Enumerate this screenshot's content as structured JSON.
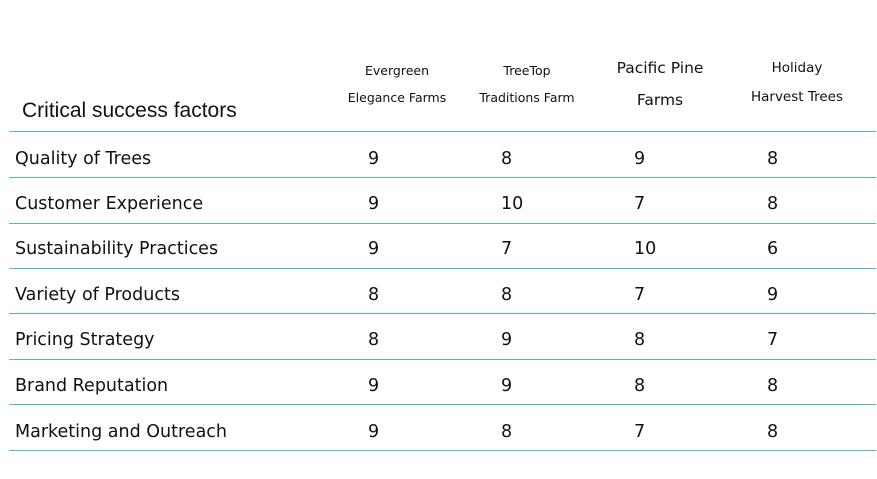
{
  "table": {
    "title": "Critical success factors",
    "columns": [
      {
        "line1": "Evergreen",
        "line2": "Elegance Farms"
      },
      {
        "line1": "TreeTop",
        "line2": "Traditions Farm"
      },
      {
        "line1": "Pacific Pine",
        "line2": "Farms"
      },
      {
        "line1": "Holiday",
        "line2": "Harvest Trees"
      }
    ],
    "rows": [
      {
        "label": "Quality of Trees",
        "values": [
          "9",
          "8",
          "9",
          "8"
        ]
      },
      {
        "label": "Customer Experience",
        "values": [
          "9",
          "10",
          "7",
          "8"
        ]
      },
      {
        "label": "Sustainability Practices",
        "values": [
          "9",
          "7",
          "10",
          "6"
        ]
      },
      {
        "label": "Variety of Products",
        "values": [
          "8",
          "8",
          "7",
          "9"
        ]
      },
      {
        "label": "Pricing Strategy",
        "values": [
          "8",
          "9",
          "8",
          "7"
        ]
      },
      {
        "label": "Brand Reputation",
        "values": [
          "9",
          "9",
          "8",
          "8"
        ]
      },
      {
        "label": "Marketing and Outreach",
        "values": [
          "9",
          "8",
          "7",
          "8"
        ]
      }
    ],
    "line_color": "#4cb7d6"
  }
}
